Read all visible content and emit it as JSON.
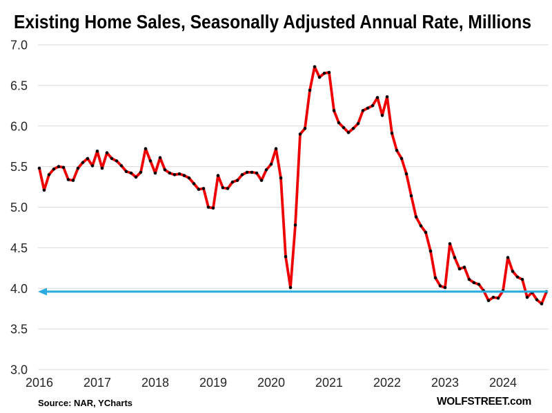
{
  "title": "Existing Home Sales, Seasonally Adjusted Annual Rate, Millions",
  "source_note": "Source: NAR, YCharts",
  "branding": "WOLFSTREET.com",
  "colors": {
    "line": "#EF0000",
    "marker": "#000000",
    "arrow": "#29ABE2",
    "gridline": "#D9D9D9",
    "axis_text": "#262626",
    "title_text": "#000000",
    "background": "#FFFFFF"
  },
  "chart_data": {
    "type": "line",
    "title": "Existing Home Sales, Seasonally Adjusted Annual Rate, Millions",
    "xlabel": "",
    "ylabel": "",
    "unit": "millions of homes, seasonally adjusted annual rate",
    "frequency": "monthly",
    "x_start": "2016-01",
    "x_end": "2024-10",
    "x_tick_labels": [
      "2016",
      "2017",
      "2018",
      "2019",
      "2020",
      "2021",
      "2022",
      "2023",
      "2024"
    ],
    "y_ticks": [
      3.0,
      3.5,
      4.0,
      4.5,
      5.0,
      5.5,
      6.0,
      6.5,
      7.0
    ],
    "ylim": [
      3.0,
      7.0
    ],
    "grid": "horizontal-only",
    "legend": "none",
    "series": [
      {
        "name": "Existing Home Sales",
        "color": "#EF0000",
        "marker_color": "#000000",
        "values": [
          5.48,
          5.21,
          5.4,
          5.47,
          5.5,
          5.49,
          5.34,
          5.33,
          5.48,
          5.55,
          5.6,
          5.51,
          5.69,
          5.48,
          5.67,
          5.6,
          5.57,
          5.51,
          5.44,
          5.42,
          5.37,
          5.43,
          5.72,
          5.57,
          5.42,
          5.61,
          5.46,
          5.42,
          5.4,
          5.41,
          5.39,
          5.36,
          5.29,
          5.22,
          5.23,
          5.0,
          4.99,
          5.39,
          5.24,
          5.23,
          5.31,
          5.33,
          5.4,
          5.43,
          5.43,
          5.42,
          5.33,
          5.46,
          5.53,
          5.72,
          5.36,
          4.39,
          4.01,
          4.78,
          5.9,
          5.97,
          6.44,
          6.73,
          6.6,
          6.65,
          6.66,
          6.19,
          6.04,
          5.98,
          5.92,
          5.97,
          6.03,
          6.19,
          6.22,
          6.25,
          6.35,
          6.13,
          6.36,
          5.91,
          5.7,
          5.6,
          5.41,
          5.14,
          4.88,
          4.77,
          4.69,
          4.46,
          4.13,
          4.03,
          4.01,
          4.55,
          4.38,
          4.24,
          4.26,
          4.11,
          4.07,
          4.05,
          3.97,
          3.85,
          3.89,
          3.88,
          3.97,
          4.38,
          4.21,
          4.14,
          4.11,
          3.89,
          3.95,
          3.86,
          3.81,
          3.96
        ]
      }
    ],
    "reference_arrow": {
      "value": 3.96,
      "direction": "left",
      "color": "#29ABE2",
      "meaning": "latest monthly level traced back across history"
    }
  }
}
